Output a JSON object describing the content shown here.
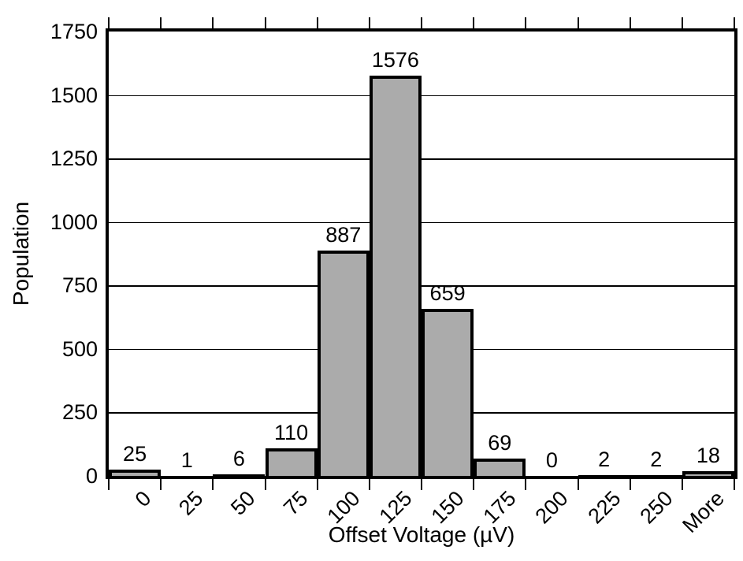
{
  "chart_data": {
    "type": "bar",
    "subtype": "histogram",
    "title": "",
    "xlabel": "Offset Voltage (µV)",
    "ylabel": "Population",
    "categories": [
      "0",
      "25",
      "50",
      "75",
      "100",
      "125",
      "150",
      "175",
      "200",
      "225",
      "250",
      "More"
    ],
    "values": [
      25,
      1,
      6,
      110,
      887,
      1576,
      659,
      69,
      0,
      2,
      2,
      18
    ],
    "data_labels_shown": true,
    "ylim": [
      0,
      1750
    ],
    "yticks": [
      0,
      250,
      500,
      750,
      1000,
      1250,
      1500,
      1750
    ],
    "grid": "horizontal",
    "legend": "none",
    "x_label_rotation_deg": -45,
    "colors": {
      "bar_fill": "#ABABAB",
      "bar_border": "#000000",
      "axis": "#000000",
      "gridline": "#000000",
      "text": "#000000",
      "background": "#FFFFFF"
    }
  }
}
